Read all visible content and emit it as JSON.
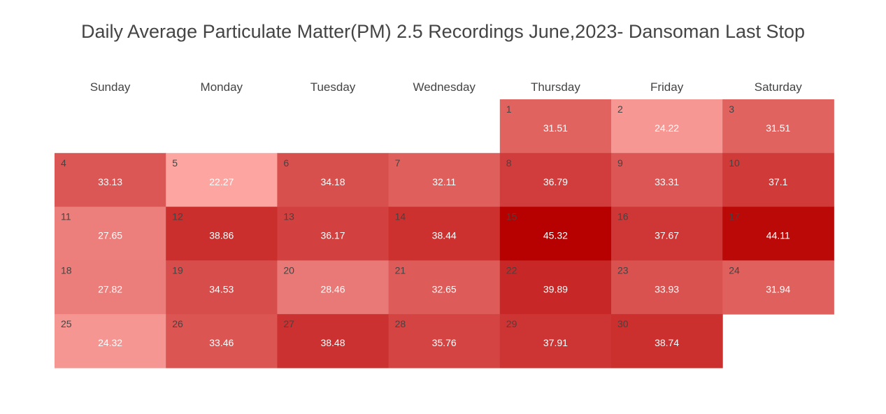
{
  "chart_data": {
    "type": "heatmap",
    "title": "Daily Average Particulate Matter(PM) 2.5 Recordings June,2023- Dansoman Last Stop",
    "weekdays": [
      "Sunday",
      "Monday",
      "Tuesday",
      "Wednesday",
      "Thursday",
      "Friday",
      "Saturday"
    ],
    "first_weekday_index": 4,
    "color_scale": {
      "low": "#fca5a1",
      "high": "#b70000",
      "min": 22.27,
      "max": 45.32
    },
    "days": [
      {
        "day": "1",
        "value": 31.51
      },
      {
        "day": "2",
        "value": 24.22
      },
      {
        "day": "3",
        "value": 31.51
      },
      {
        "day": "4",
        "value": 33.13
      },
      {
        "day": "5",
        "value": 22.27
      },
      {
        "day": "6",
        "value": 34.18
      },
      {
        "day": "7",
        "value": 32.11
      },
      {
        "day": "8",
        "value": 36.79
      },
      {
        "day": "9",
        "value": 33.31
      },
      {
        "day": "10",
        "value": 37.1
      },
      {
        "day": "11",
        "value": 27.65
      },
      {
        "day": "12",
        "value": 38.86
      },
      {
        "day": "13",
        "value": 36.17
      },
      {
        "day": "14",
        "value": 38.44
      },
      {
        "day": "15",
        "value": 45.32
      },
      {
        "day": "16",
        "value": 37.67
      },
      {
        "day": "17",
        "value": 44.11
      },
      {
        "day": "18",
        "value": 27.82
      },
      {
        "day": "19",
        "value": 34.53
      },
      {
        "day": "20",
        "value": 28.46
      },
      {
        "day": "21",
        "value": 32.65
      },
      {
        "day": "22",
        "value": 39.89
      },
      {
        "day": "23",
        "value": 33.93
      },
      {
        "day": "24",
        "value": 31.94
      },
      {
        "day": "25",
        "value": 24.32
      },
      {
        "day": "26",
        "value": 33.46
      },
      {
        "day": "27",
        "value": 38.48
      },
      {
        "day": "28",
        "value": 35.76
      },
      {
        "day": "29",
        "value": 37.91
      },
      {
        "day": "30",
        "value": 38.74
      }
    ]
  }
}
